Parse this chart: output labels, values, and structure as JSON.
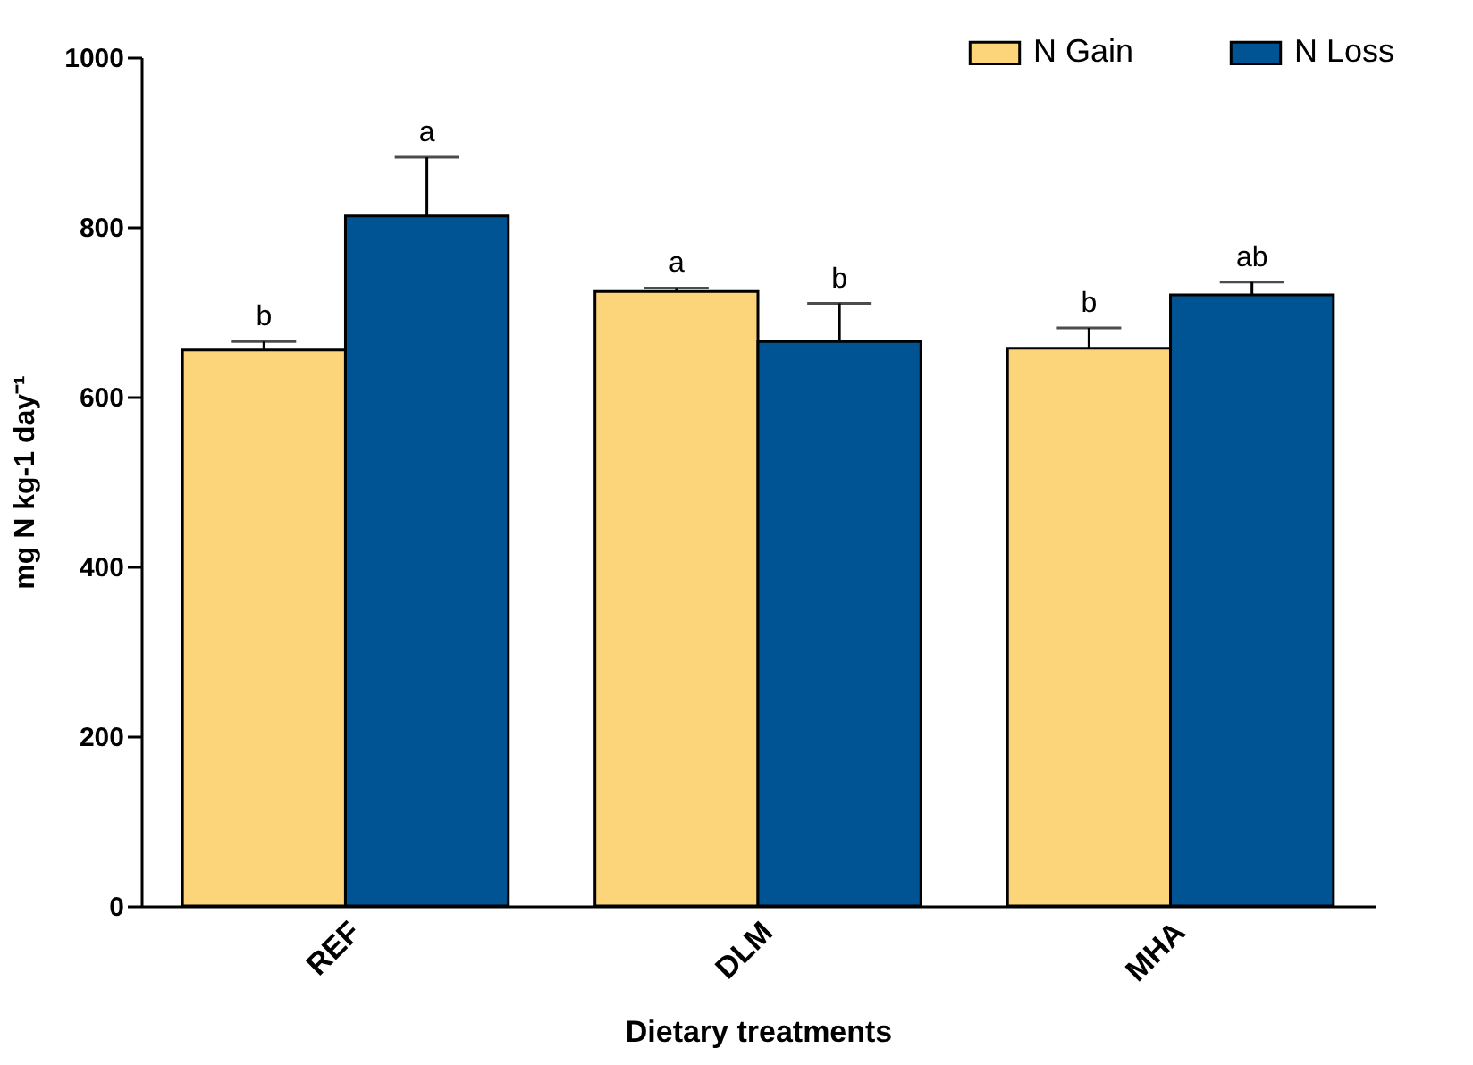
{
  "chart_data": {
    "type": "bar",
    "xlabel": "Dietary treatments",
    "ylabel": "mg N kg-1 day⁻¹",
    "categories": [
      "REF",
      "DLM",
      "MHA"
    ],
    "series": [
      {
        "name": "N Gain",
        "color": "#fcd57a",
        "values": [
          655,
          724,
          657
        ],
        "errors": [
          10,
          4,
          24
        ],
        "value_labels": [
          "b",
          "a",
          "b"
        ]
      },
      {
        "name": "N Loss",
        "color": "#005493",
        "values": [
          813,
          665,
          720
        ],
        "errors": [
          69,
          45,
          15
        ],
        "value_labels": [
          "a",
          "b",
          "ab"
        ]
      }
    ],
    "ylim": [
      0,
      1000
    ],
    "yticks": [
      0,
      200,
      400,
      600,
      800,
      1000
    ],
    "grid": false,
    "legend": "top right"
  }
}
